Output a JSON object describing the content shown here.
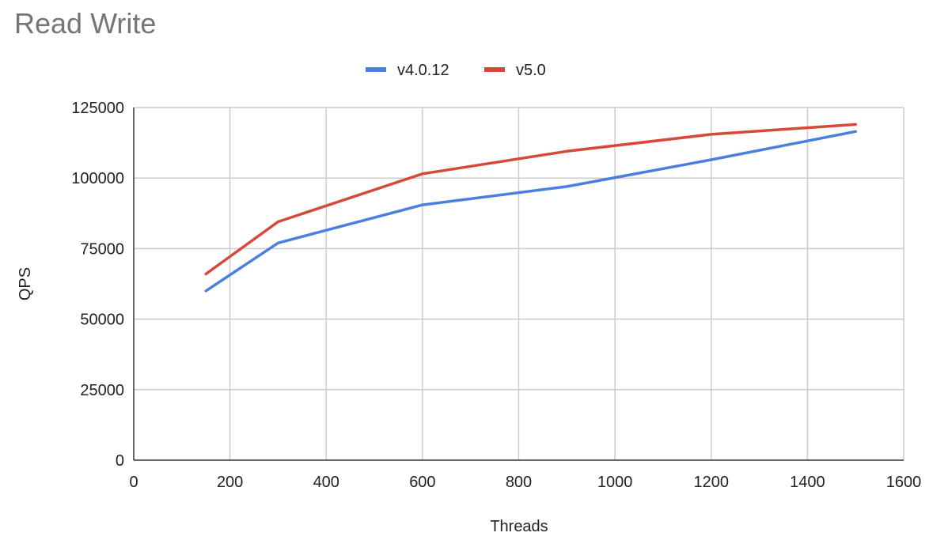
{
  "chart_data": {
    "type": "line",
    "title": "Read Write",
    "xlabel": "Threads",
    "ylabel": "QPS",
    "xlim": [
      0,
      1600
    ],
    "ylim": [
      0,
      125000
    ],
    "x_ticks": [
      0,
      200,
      400,
      600,
      800,
      1000,
      1200,
      1400,
      1600
    ],
    "y_ticks": [
      0,
      25000,
      50000,
      75000,
      100000,
      125000
    ],
    "grid": true,
    "legend_position": "top-center",
    "series": [
      {
        "name": "v4.0.12",
        "color": "#4a7fdf",
        "x": [
          150,
          300,
          600,
          900,
          1200,
          1500
        ],
        "y": [
          60000,
          77000,
          90500,
          97000,
          106500,
          116500
        ]
      },
      {
        "name": "v5.0",
        "color": "#d64838",
        "x": [
          150,
          300,
          600,
          900,
          1200,
          1500
        ],
        "y": [
          66000,
          84500,
          101500,
          109500,
          115500,
          119000
        ]
      }
    ]
  }
}
